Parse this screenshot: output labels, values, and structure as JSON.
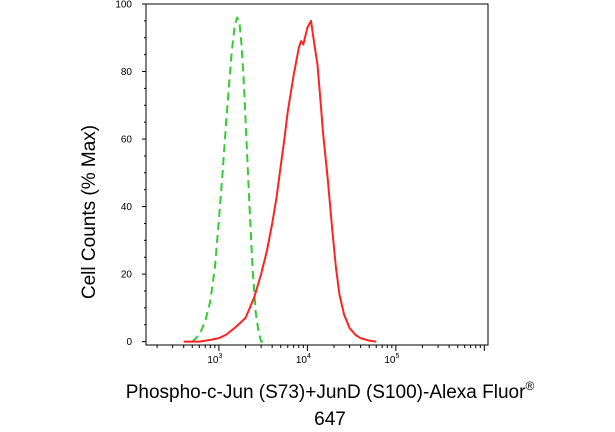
{
  "chart_data": {
    "type": "line",
    "title": "",
    "xlabel": "Phospho-c-Jun (S73)+JunD (S100)-Alexa Fluor",
    "xlabel_superscript": "®",
    "xlabel_line2": "647",
    "ylabel": "Cell Counts (% Max)",
    "x_scale": "log",
    "xlim": [
      150,
      1100000
    ],
    "ylim": [
      -1,
      100
    ],
    "grid": false,
    "legend": "none",
    "y_ticks": [
      0,
      20,
      40,
      60,
      80,
      100
    ],
    "y_tick_labels": [
      "0",
      "20",
      "40",
      "60",
      "80",
      "100"
    ],
    "x_major_ticks": [
      {
        "value": 1000,
        "base": "10",
        "exp": "3"
      },
      {
        "value": 10000,
        "base": "10",
        "exp": "4"
      },
      {
        "value": 100000,
        "base": "10",
        "exp": "5"
      }
    ],
    "series": [
      {
        "color": "#33cc33",
        "dash": "dashed",
        "x": [
          500,
          600,
          700,
          800,
          900,
          1000,
          1100,
          1200,
          1300,
          1400,
          1500,
          1600,
          1700,
          1800,
          1900,
          2000,
          2200,
          2400,
          2600,
          2800,
          3000,
          3200,
          3400,
          3600
        ],
        "y": [
          0,
          2,
          6,
          12,
          22,
          36,
          50,
          64,
          76,
          86,
          93,
          96,
          95,
          88,
          78,
          66,
          42,
          22,
          9,
          3,
          0,
          0,
          0,
          0
        ]
      },
      {
        "color": "#ff2222",
        "dash": "solid",
        "x": [
          400,
          600,
          800,
          1000,
          1200,
          1500,
          2000,
          2500,
          3000,
          3500,
          4000,
          4500,
          5000,
          5500,
          6000,
          7000,
          8000,
          8500,
          9000,
          10000,
          11000,
          12000,
          13000,
          14000,
          15000,
          17000,
          19000,
          21000,
          23000,
          26000,
          30000,
          35000,
          40000,
          50000,
          60000
        ],
        "y": [
          0,
          0,
          0.5,
          1,
          2,
          4,
          7,
          13,
          20,
          27,
          35,
          43,
          52,
          60,
          68,
          79,
          87,
          89,
          88,
          93,
          95,
          88,
          82,
          72,
          62,
          48,
          34,
          22,
          14,
          8,
          4,
          2,
          1,
          0.3,
          0
        ]
      }
    ]
  }
}
